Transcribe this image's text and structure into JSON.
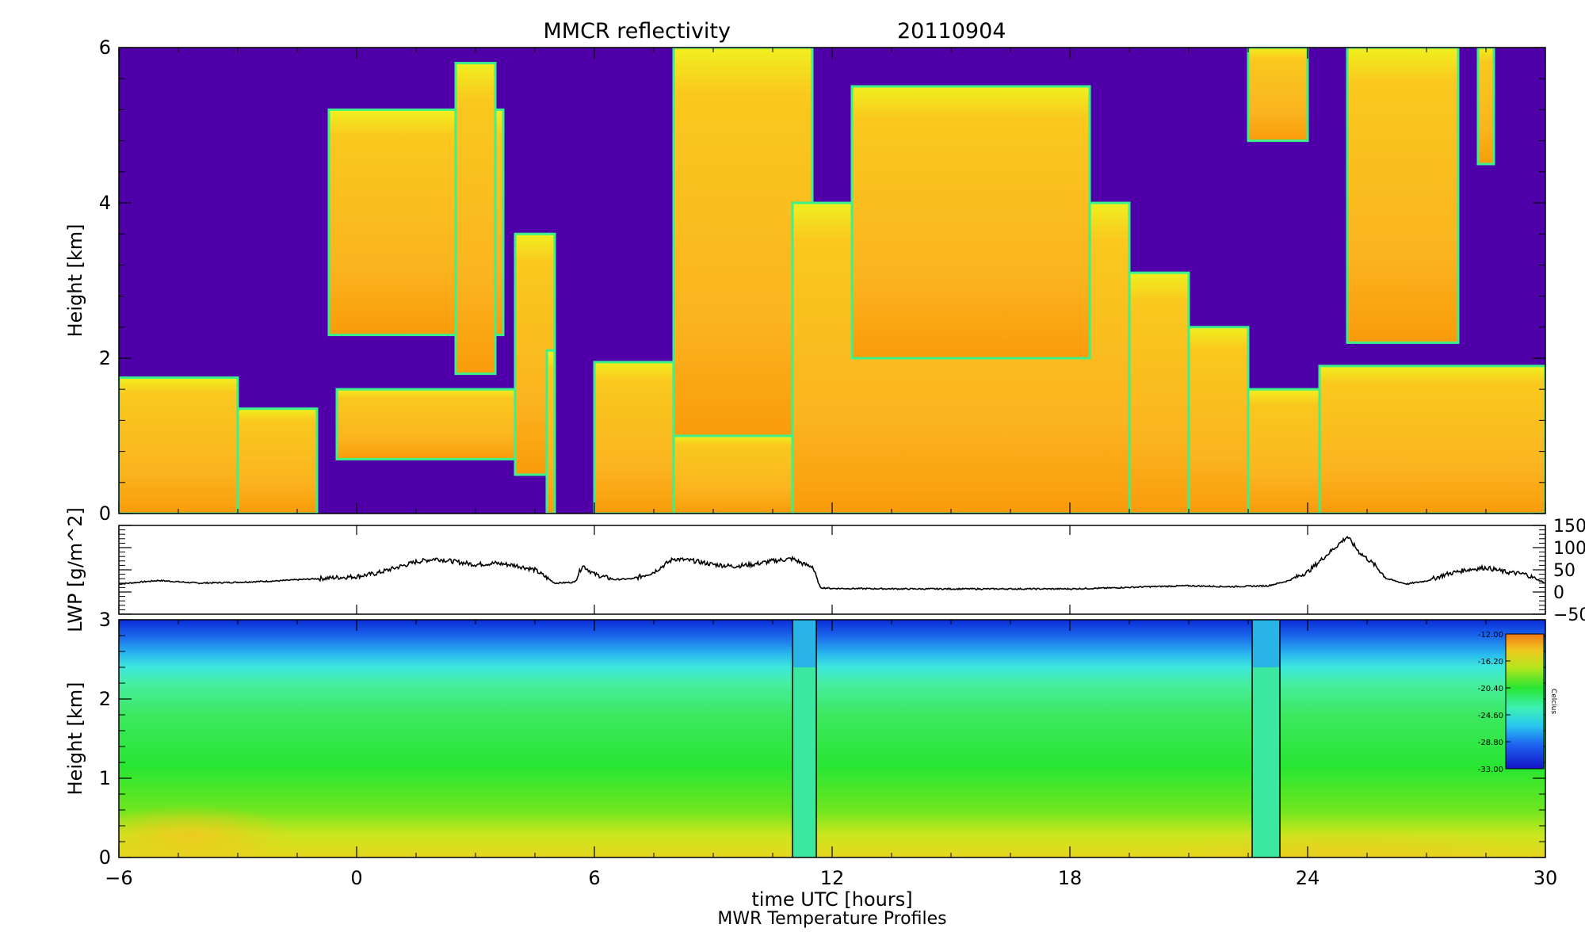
{
  "chart_data": [
    {
      "type": "heatmap",
      "panel": "reflectivity",
      "title": "MMCR reflectivity",
      "date": "20110904",
      "xlabel": "time UTC [hours]",
      "ylabel": "Height [km]",
      "xlim": [
        -6,
        30
      ],
      "ylim": [
        0,
        6
      ],
      "xticks": [
        -6,
        0,
        6,
        12,
        18,
        24,
        30
      ],
      "yticks": [
        0,
        2,
        4,
        6
      ],
      "colors": {
        "clear_sky": "#5000a8",
        "cloud_edge": "#3cf08c",
        "cloud_thin": "#f0f01e",
        "cloud_mid": "#fac81e",
        "cloud_dense": "#fa9b0a"
      },
      "cloud_regions": [
        {
          "t_start": -6.0,
          "t_end": -3.0,
          "base_km": 0.0,
          "top_km": 1.75
        },
        {
          "t_start": -3.0,
          "t_end": -1.0,
          "base_km": 0.0,
          "top_km": 1.35
        },
        {
          "t_start": -0.5,
          "t_end": 4.0,
          "base_km": 0.7,
          "top_km": 1.6
        },
        {
          "t_start": -0.7,
          "t_end": 3.7,
          "base_km": 2.3,
          "top_km": 5.2
        },
        {
          "t_start": 2.5,
          "t_end": 3.5,
          "base_km": 1.8,
          "top_km": 5.8
        },
        {
          "t_start": 4.0,
          "t_end": 5.0,
          "base_km": 0.5,
          "top_km": 3.6
        },
        {
          "t_start": 4.8,
          "t_end": 5.0,
          "base_km": 0.0,
          "top_km": 2.1
        },
        {
          "t_start": 6.0,
          "t_end": 8.0,
          "base_km": 0.0,
          "top_km": 1.95
        },
        {
          "t_start": 8.0,
          "t_end": 11.0,
          "base_km": 0.0,
          "top_km": 1.0
        },
        {
          "t_start": 8.0,
          "t_end": 11.5,
          "base_km": 1.0,
          "top_km": 6.0
        },
        {
          "t_start": 11.0,
          "t_end": 19.5,
          "base_km": 0.0,
          "top_km": 4.0
        },
        {
          "t_start": 12.5,
          "t_end": 18.5,
          "base_km": 2.0,
          "top_km": 5.5
        },
        {
          "t_start": 19.5,
          "t_end": 21.0,
          "base_km": 0.0,
          "top_km": 3.1
        },
        {
          "t_start": 21.0,
          "t_end": 22.5,
          "base_km": 0.0,
          "top_km": 2.4
        },
        {
          "t_start": 22.5,
          "t_end": 24.3,
          "base_km": 0.0,
          "top_km": 1.6
        },
        {
          "t_start": 24.3,
          "t_end": 30.0,
          "base_km": 0.0,
          "top_km": 1.9
        },
        {
          "t_start": 22.5,
          "t_end": 24.0,
          "base_km": 4.8,
          "top_km": 6.0
        },
        {
          "t_start": 25.0,
          "t_end": 27.8,
          "base_km": 2.2,
          "top_km": 6.0
        },
        {
          "t_start": 28.3,
          "t_end": 28.7,
          "base_km": 4.5,
          "top_km": 6.0
        }
      ]
    },
    {
      "type": "line",
      "panel": "lwp",
      "ylabel": "LWP [g/m^2]",
      "xlim": [
        -6,
        30
      ],
      "ylim": [
        -50,
        150
      ],
      "yticks": [
        -50,
        0,
        50,
        100,
        150
      ],
      "series": [
        {
          "x": [
            -6.0,
            -5.5,
            -5.0,
            -4.0,
            -3.0,
            -2.0,
            -1.0,
            0.0,
            0.5,
            1.0,
            1.5,
            2.0,
            2.5,
            3.0,
            3.5,
            4.0,
            4.5,
            5.0,
            5.5,
            5.7,
            6.0,
            6.5,
            7.0,
            7.5,
            8.0,
            8.5,
            9.0,
            9.5,
            10.0,
            10.5,
            11.0,
            11.3,
            11.5,
            11.7,
            12.0,
            14.0,
            16.0,
            18.0,
            19.0,
            20.0,
            21.0,
            22.0,
            23.0,
            23.5,
            24.0,
            24.5,
            25.0,
            25.3,
            25.7,
            26.0,
            26.5,
            27.0,
            27.5,
            28.0,
            28.5,
            29.0,
            29.5,
            30.0
          ],
          "values": [
            18,
            22,
            26,
            20,
            22,
            25,
            30,
            35,
            42,
            55,
            68,
            75,
            68,
            62,
            65,
            60,
            50,
            20,
            22,
            60,
            40,
            28,
            30,
            45,
            75,
            70,
            62,
            58,
            62,
            70,
            75,
            62,
            58,
            10,
            8,
            7,
            7,
            7,
            9,
            12,
            14,
            12,
            14,
            25,
            45,
            85,
            125,
            90,
            60,
            30,
            18,
            25,
            40,
            50,
            55,
            45,
            40,
            20
          ]
        }
      ]
    },
    {
      "type": "heatmap",
      "panel": "temperature",
      "ylabel": "Height [km]",
      "xlabel": "time UTC [hours]",
      "caption": "MWR Temperature Profiles",
      "xlim": [
        -6,
        30
      ],
      "ylim": [
        0,
        3
      ],
      "xticks": [
        -6,
        0,
        6,
        12,
        18,
        24,
        30
      ],
      "yticks": [
        0,
        1,
        2,
        3
      ],
      "data_gaps_hours": [
        [
          11.0,
          11.6
        ],
        [
          22.6,
          23.3
        ]
      ],
      "colorbar": {
        "label": "Celcius",
        "ticks": [
          "-12.00",
          "-16.20",
          "-20.40",
          "-24.60",
          "-28.80",
          "-33.00"
        ],
        "range": [
          -33.0,
          -12.0
        ]
      },
      "profile_by_height": [
        {
          "height_km": 0.0,
          "temp_c": -14
        },
        {
          "height_km": 0.3,
          "temp_c": -17
        },
        {
          "height_km": 1.0,
          "temp_c": -20
        },
        {
          "height_km": 2.0,
          "temp_c": -24
        },
        {
          "height_km": 2.5,
          "temp_c": -28
        },
        {
          "height_km": 3.0,
          "temp_c": -33
        }
      ]
    }
  ]
}
